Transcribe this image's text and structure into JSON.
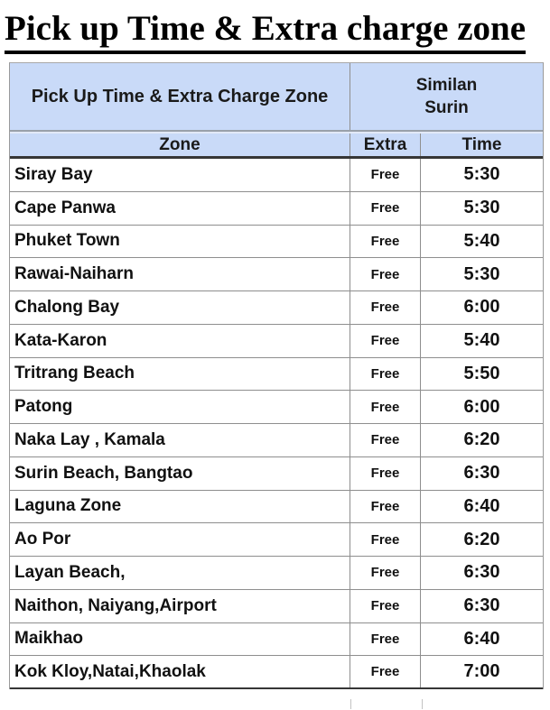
{
  "page": {
    "title": "Pick up Time & Extra charge zone"
  },
  "table": {
    "header": {
      "group_left": "Pick Up Time & Extra Charge Zone",
      "boat_line1": "Similan",
      "boat_line2": "Surin",
      "columns": [
        "Zone",
        "Extra",
        "Time"
      ]
    },
    "rows": [
      {
        "zone": "Siray Bay",
        "extra": "Free",
        "time": "5:30"
      },
      {
        "zone": "Cape Panwa",
        "extra": "Free",
        "time": "5:30"
      },
      {
        "zone": "Phuket Town",
        "extra": "Free",
        "time": "5:40"
      },
      {
        "zone": "Rawai-Naiharn",
        "extra": "Free",
        "time": "5:30"
      },
      {
        "zone": "Chalong Bay",
        "extra": "Free",
        "time": "6:00"
      },
      {
        "zone": "Kata-Karon",
        "extra": "Free",
        "time": "5:40"
      },
      {
        "zone": "Tritrang Beach",
        "extra": "Free",
        "time": "5:50"
      },
      {
        "zone": "Patong",
        "extra": "Free",
        "time": "6:00"
      },
      {
        "zone": "Naka Lay , Kamala",
        "extra": "Free",
        "time": "6:20"
      },
      {
        "zone": "Surin Beach, Bangtao",
        "extra": "Free",
        "time": "6:30"
      },
      {
        "zone": "Laguna Zone",
        "extra": "Free",
        "time": "6:40"
      },
      {
        "zone": "Ao Por",
        "extra": "Free",
        "time": "6:20"
      },
      {
        "zone": "Layan Beach,",
        "extra": "Free",
        "time": "6:30"
      },
      {
        "zone": "Naithon, Naiyang,Airport",
        "extra": "Free",
        "time": "6:30"
      },
      {
        "zone": "Maikhao",
        "extra": "Free",
        "time": "6:40"
      },
      {
        "zone": "Kok Kloy,Natai,Khaolak",
        "extra": "Free",
        "time": "7:00"
      }
    ]
  },
  "colors": {
    "header_bg": "#c9daf8",
    "border_gray": "#8e8e8e",
    "border_dark": "#363636",
    "text": "#111111"
  }
}
